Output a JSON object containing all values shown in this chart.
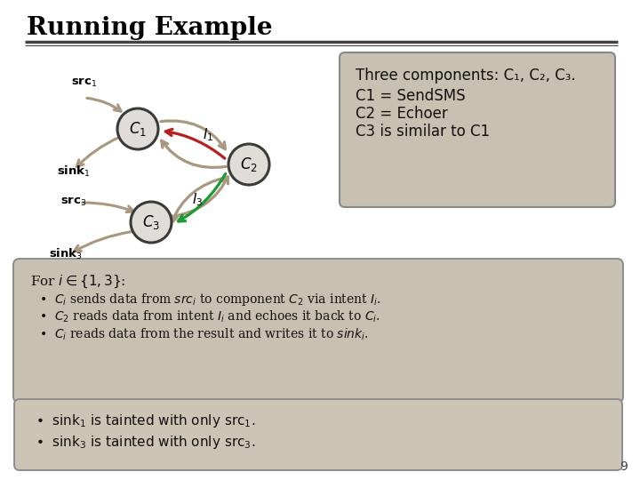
{
  "title": "Running Example",
  "bg_color": "#ffffff",
  "box_bg": "#c8c0b0",
  "box_bg2": "#ccc4b4",
  "title_color": "#000000",
  "node_fill": "#e0ddd8",
  "node_edge": "#3a3a3a",
  "arrow_tan": "#a89880",
  "arrow_red": "#b52020",
  "arrow_green": "#1a9a30",
  "info_box_text": [
    "Three components: C₁, C₂, C₃.",
    "C1 = SendSMS",
    "C2 = Echoer",
    "C3 is similar to C1"
  ],
  "bullet_header": "For $i \\in \\{1, 3\\}$:",
  "bullet_items": [
    "$C_i$ sends data from $\\mathit{src}_i$ to component $C_2$ via intent $I_i$.",
    "$C_2$ reads data from intent $I_i$ and echoes it back to $C_i$.",
    "$C_i$ reads data from the result and writes it to $\\mathit{sink}_i$."
  ],
  "bottom_items": [
    "sink$_1$ is tainted with only src$_1$.",
    "sink$_3$ is tainted with only src$_3$."
  ],
  "page_number": "9",
  "C1": [
    155,
    145
  ],
  "C2": [
    280,
    185
  ],
  "C3": [
    170,
    250
  ],
  "node_r": 23
}
